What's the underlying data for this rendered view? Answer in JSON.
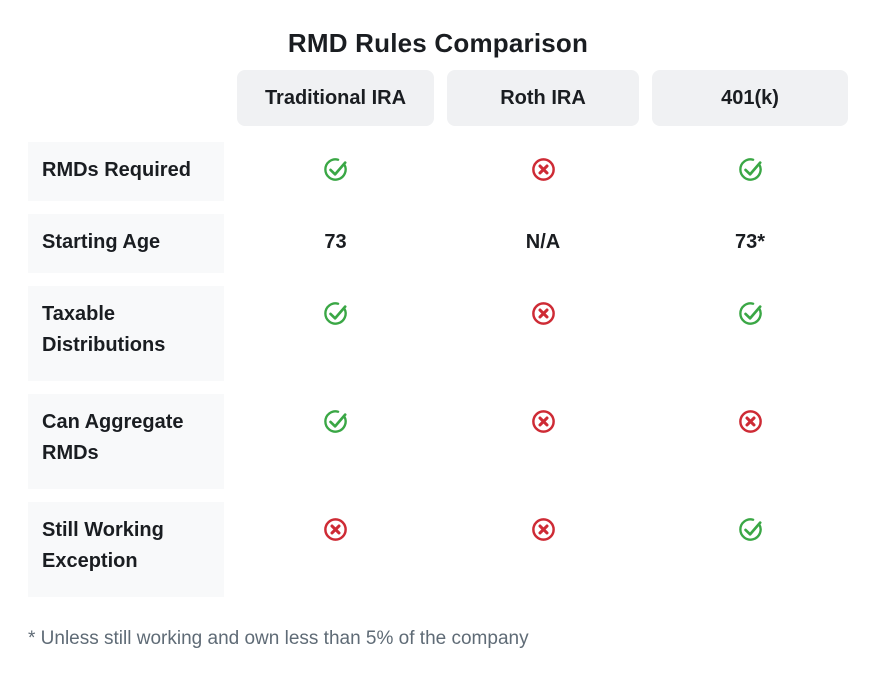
{
  "chart_data": {
    "type": "table",
    "title": "RMD Rules Comparison",
    "column_headers": [
      "Traditional IRA",
      "Roth IRA",
      "401(k)"
    ],
    "row_headers": [
      "RMDs Required",
      "Starting Age",
      "Taxable Distributions",
      "Can Aggregate RMDs",
      "Still Working Exception"
    ],
    "cells": [
      [
        "check",
        "cross",
        "check"
      ],
      [
        "73",
        "N/A",
        "73*"
      ],
      [
        "check",
        "cross",
        "check"
      ],
      [
        "check",
        "cross",
        "cross"
      ],
      [
        "cross",
        "cross",
        "check"
      ]
    ],
    "footnote": "* Unless still working and own less than 5% of the company",
    "legend_position": "none",
    "cell_semantics": {
      "check": "yes / applies",
      "cross": "no / does not apply"
    }
  },
  "colors": {
    "check_green": "#3aa745",
    "cross_red": "#ce2b35",
    "header_box_bg": "#f0f1f3",
    "row_label_bg": "#f8f9fa",
    "text": "#1a1d21",
    "footnote_text": "#5f6b76",
    "background": "#ffffff"
  }
}
